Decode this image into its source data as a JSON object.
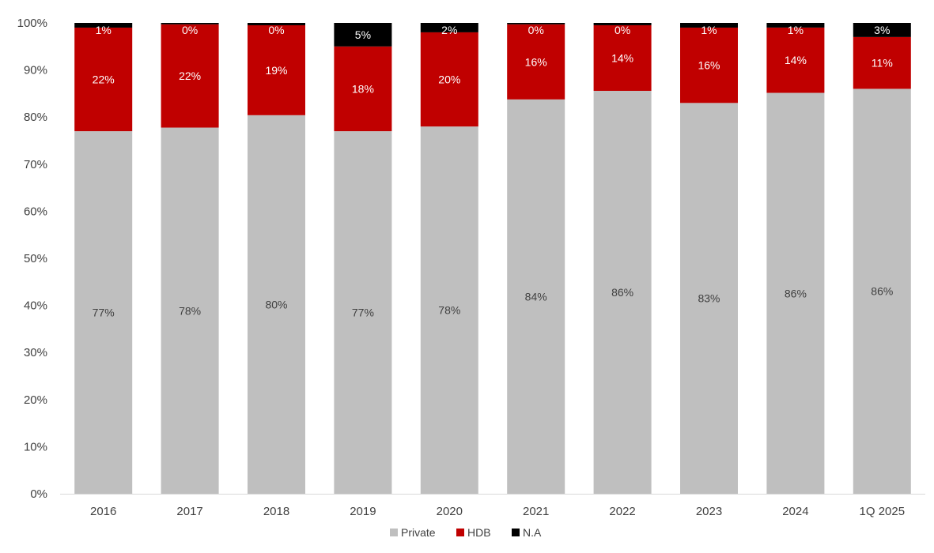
{
  "chart_data": {
    "type": "bar",
    "stacked": true,
    "normalized": true,
    "categories": [
      "2016",
      "2017",
      "2018",
      "2019",
      "2020",
      "2021",
      "2022",
      "2023",
      "2024",
      "1Q 2025"
    ],
    "series": [
      {
        "name": "Private",
        "color": "#bfbfbf",
        "label_color": "#404040",
        "values": [
          77,
          78,
          80,
          77,
          78,
          84,
          86,
          83,
          86,
          86
        ],
        "labels": [
          "77%",
          "78%",
          "80%",
          "77%",
          "78%",
          "84%",
          "86%",
          "83%",
          "86%",
          "86%"
        ]
      },
      {
        "name": "HDB",
        "color": "#c00000",
        "label_color": "#ffffff",
        "values": [
          22,
          22,
          19,
          18,
          20,
          16,
          14,
          16,
          14,
          11
        ],
        "labels": [
          "22%",
          "22%",
          "19%",
          "18%",
          "20%",
          "16%",
          "14%",
          "16%",
          "14%",
          "11%"
        ]
      },
      {
        "name": "N.A",
        "color": "#000000",
        "label_color": "#ffffff",
        "values": [
          1,
          0.3,
          0.5,
          5,
          2,
          0.3,
          0.5,
          1,
          1,
          3
        ],
        "labels": [
          "1%",
          "0%",
          "0%",
          "5%",
          "2%",
          "0%",
          "0%",
          "1%",
          "1%",
          "3%"
        ]
      }
    ],
    "y_ticks": [
      "0%",
      "10%",
      "20%",
      "30%",
      "40%",
      "50%",
      "60%",
      "70%",
      "80%",
      "90%",
      "100%"
    ],
    "ylim": [
      0,
      100
    ],
    "title": "",
    "xlabel": "",
    "ylabel": "",
    "grid": false,
    "legend_position": "bottom"
  }
}
